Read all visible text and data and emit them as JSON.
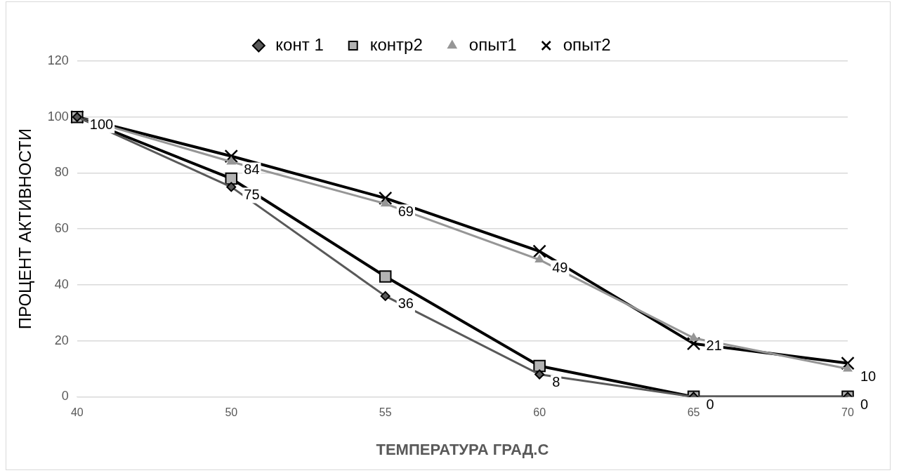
{
  "chart_data": {
    "type": "line",
    "xlabel": "ТЕМПЕРАТУРА ГРАД.С",
    "ylabel": "ПРОЦЕНТ АКТИВНОСТИ",
    "categories": [
      "40",
      "50",
      "55",
      "60",
      "65",
      "70"
    ],
    "ylim": [
      0,
      120
    ],
    "yticks": [
      0,
      20,
      40,
      60,
      80,
      100,
      120
    ],
    "grid": "y",
    "legend": "top",
    "line_style": "solid",
    "series": [
      {
        "name": "конт 1",
        "color": "#595959",
        "marker": "diamond",
        "values": [
          100,
          75,
          36,
          8,
          0,
          0
        ],
        "value_labels": [
          "100",
          "75",
          "36",
          "8",
          "0",
          "0"
        ]
      },
      {
        "name": "контр2",
        "color": "#000000",
        "marker": "square",
        "values": [
          100,
          78,
          43,
          11,
          0,
          0
        ]
      },
      {
        "name": "опыт1",
        "color": "#969696",
        "marker": "triangle",
        "values": [
          100,
          84,
          69,
          49,
          21,
          10
        ],
        "value_labels": [
          null,
          "84",
          "69",
          "49",
          "21",
          "10"
        ]
      },
      {
        "name": "опыт2",
        "color": "#000000",
        "marker": "cross",
        "values": [
          100,
          86,
          71,
          52,
          19,
          12
        ]
      }
    ]
  }
}
